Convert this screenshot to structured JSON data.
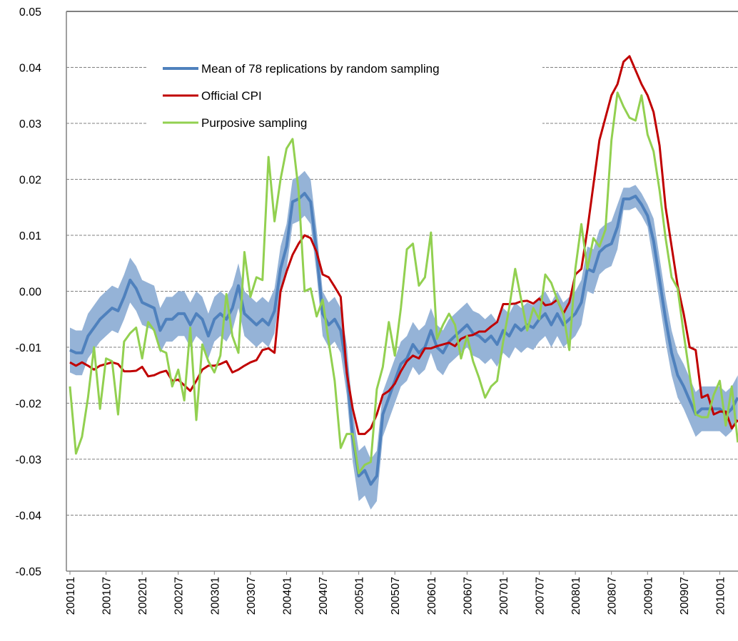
{
  "chart_data": {
    "type": "line",
    "categories": [
      "200101",
      null,
      null,
      null,
      null,
      null,
      "200107",
      null,
      null,
      null,
      null,
      null,
      "200201",
      null,
      null,
      null,
      null,
      null,
      "200207",
      null,
      null,
      null,
      null,
      null,
      "200301",
      null,
      null,
      null,
      null,
      null,
      "200307",
      null,
      null,
      null,
      null,
      null,
      "200401",
      null,
      null,
      null,
      null,
      null,
      "200407",
      null,
      null,
      null,
      null,
      null,
      "200501",
      null,
      null,
      null,
      null,
      null,
      "200507",
      null,
      null,
      null,
      null,
      null,
      "200601",
      null,
      null,
      null,
      null,
      null,
      "200607",
      null,
      null,
      null,
      null,
      null,
      "200701",
      null,
      null,
      null,
      null,
      null,
      "200707",
      null,
      null,
      null,
      null,
      null,
      "200801",
      null,
      null,
      null,
      null,
      null,
      "200807",
      null,
      null,
      null,
      null,
      null,
      "200901",
      null,
      null,
      null,
      null,
      null,
      "200907",
      null,
      null,
      null,
      null,
      null,
      "201001",
      null,
      null,
      null
    ],
    "band": {
      "color": "#95b3d7",
      "upper": [
        -0.0065,
        -0.007,
        -0.007,
        -0.004,
        -0.0025,
        -0.001,
        0.0,
        0.001,
        0.0005,
        0.003,
        0.006,
        0.0045,
        0.002,
        0.0015,
        0.001,
        -0.003,
        -0.001,
        -0.001,
        0.0,
        0.0,
        -0.002,
        0.0,
        -0.001,
        -0.004,
        -0.001,
        0.0,
        -0.001,
        0.001,
        0.005,
        0.0,
        -0.001,
        -0.002,
        -0.001,
        -0.002,
        0.0005,
        0.008,
        0.012,
        0.02,
        0.0205,
        0.0215,
        0.02,
        0.011,
        0.0,
        -0.002,
        -0.001,
        -0.003,
        -0.0095,
        -0.0215,
        -0.0285,
        -0.0275,
        -0.03,
        -0.0285,
        -0.018,
        -0.015,
        -0.012,
        -0.009,
        -0.008,
        -0.0055,
        -0.007,
        -0.006,
        -0.003,
        -0.006,
        -0.007,
        -0.005,
        -0.004,
        -0.003,
        -0.002,
        -0.0035,
        -0.004,
        -0.005,
        -0.004,
        -0.0055,
        -0.003,
        -0.004,
        -0.002,
        -0.003,
        -0.002,
        -0.0025,
        -0.001,
        0.0,
        -0.002,
        0.0,
        -0.002,
        -0.001,
        0.0,
        0.002,
        0.008,
        0.0075,
        0.011,
        0.012,
        0.0125,
        0.0155,
        0.0185,
        0.0185,
        0.019,
        0.0175,
        0.0155,
        0.013,
        0.006,
        -0.001,
        -0.007,
        -0.011,
        -0.013,
        -0.0155,
        -0.018,
        -0.017,
        -0.017,
        -0.017,
        -0.017,
        -0.018,
        -0.017,
        -0.015
      ],
      "lower": [
        -0.0145,
        -0.015,
        -0.015,
        -0.012,
        -0.0105,
        -0.009,
        -0.008,
        -0.007,
        -0.0075,
        -0.005,
        -0.002,
        -0.0035,
        -0.006,
        -0.0065,
        -0.007,
        -0.011,
        -0.009,
        -0.009,
        -0.008,
        -0.008,
        -0.01,
        -0.008,
        -0.009,
        -0.012,
        -0.009,
        -0.008,
        -0.009,
        -0.007,
        -0.003,
        -0.008,
        -0.009,
        -0.01,
        -0.009,
        -0.01,
        -0.0075,
        0.0,
        0.004,
        0.012,
        0.0125,
        0.0135,
        0.012,
        0.003,
        -0.008,
        -0.01,
        -0.009,
        -0.011,
        -0.0185,
        -0.0305,
        -0.0375,
        -0.0365,
        -0.039,
        -0.0375,
        -0.026,
        -0.023,
        -0.02,
        -0.017,
        -0.016,
        -0.0135,
        -0.015,
        -0.014,
        -0.011,
        -0.014,
        -0.015,
        -0.013,
        -0.012,
        -0.011,
        -0.01,
        -0.0115,
        -0.012,
        -0.013,
        -0.012,
        -0.0135,
        -0.011,
        -0.012,
        -0.01,
        -0.011,
        -0.01,
        -0.0105,
        -0.009,
        -0.008,
        -0.01,
        -0.008,
        -0.01,
        -0.009,
        -0.008,
        -0.006,
        0.0,
        -0.0005,
        0.003,
        0.004,
        0.0045,
        0.0075,
        0.0145,
        0.0145,
        0.015,
        0.0135,
        0.0115,
        0.005,
        -0.002,
        -0.009,
        -0.015,
        -0.019,
        -0.021,
        -0.0235,
        -0.026,
        -0.025,
        -0.025,
        -0.025,
        -0.025,
        -0.026,
        -0.025,
        -0.023
      ]
    },
    "series": [
      {
        "name": "Mean of 78 replications by random sampling",
        "color": "#4f81bd",
        "width": 4,
        "values": [
          -0.0105,
          -0.011,
          -0.011,
          -0.008,
          -0.0065,
          -0.005,
          -0.004,
          -0.003,
          -0.0035,
          -0.001,
          0.002,
          0.0005,
          -0.002,
          -0.0025,
          -0.003,
          -0.007,
          -0.005,
          -0.005,
          -0.004,
          -0.004,
          -0.006,
          -0.004,
          -0.005,
          -0.008,
          -0.005,
          -0.004,
          -0.005,
          -0.003,
          0.001,
          -0.004,
          -0.005,
          -0.006,
          -0.005,
          -0.006,
          -0.0035,
          0.004,
          0.008,
          0.016,
          0.0165,
          0.0175,
          0.016,
          0.007,
          -0.004,
          -0.006,
          -0.005,
          -0.007,
          -0.014,
          -0.026,
          -0.033,
          -0.032,
          -0.0345,
          -0.033,
          -0.022,
          -0.019,
          -0.016,
          -0.013,
          -0.012,
          -0.0095,
          -0.011,
          -0.01,
          -0.007,
          -0.01,
          -0.011,
          -0.009,
          -0.008,
          -0.007,
          -0.006,
          -0.0075,
          -0.008,
          -0.009,
          -0.008,
          -0.0095,
          -0.007,
          -0.008,
          -0.006,
          -0.007,
          -0.006,
          -0.0065,
          -0.005,
          -0.004,
          -0.006,
          -0.004,
          -0.006,
          -0.005,
          -0.004,
          -0.002,
          0.004,
          0.0035,
          0.007,
          0.008,
          0.0085,
          0.0115,
          0.0165,
          0.0165,
          0.017,
          0.0155,
          0.0135,
          0.009,
          0.002,
          -0.005,
          -0.011,
          -0.015,
          -0.017,
          -0.0195,
          -0.022,
          -0.021,
          -0.021,
          -0.021,
          -0.021,
          -0.022,
          -0.021,
          -0.019
        ]
      },
      {
        "name": "Official CPI",
        "color": "#c00000",
        "width": 3,
        "values": [
          -0.0127,
          -0.0133,
          -0.0127,
          -0.0133,
          -0.014,
          -0.0133,
          -0.013,
          -0.0127,
          -0.013,
          -0.0143,
          -0.0143,
          -0.0142,
          -0.0135,
          -0.0152,
          -0.015,
          -0.0145,
          -0.0142,
          -0.016,
          -0.0158,
          -0.0168,
          -0.0178,
          -0.016,
          -0.014,
          -0.0133,
          -0.0133,
          -0.013,
          -0.0125,
          -0.0145,
          -0.014,
          -0.0133,
          -0.0127,
          -0.0123,
          -0.0105,
          -0.0102,
          -0.011,
          0.0,
          0.0035,
          0.0065,
          0.0085,
          0.01,
          0.0095,
          0.007,
          0.003,
          0.0025,
          0.0008,
          -0.001,
          -0.0145,
          -0.021,
          -0.0255,
          -0.0255,
          -0.0245,
          -0.022,
          -0.0185,
          -0.0178,
          -0.0165,
          -0.0143,
          -0.0125,
          -0.0115,
          -0.012,
          -0.0102,
          -0.0102,
          -0.0098,
          -0.0095,
          -0.0092,
          -0.0098,
          -0.0085,
          -0.008,
          -0.0078,
          -0.0072,
          -0.0072,
          -0.0063,
          -0.0055,
          -0.0023,
          -0.0023,
          -0.0022,
          -0.0018,
          -0.0017,
          -0.0022,
          -0.0013,
          -0.0025,
          -0.0023,
          -0.0015,
          -0.004,
          -0.002,
          0.003,
          0.004,
          0.011,
          0.019,
          0.027,
          0.031,
          0.035,
          0.037,
          0.041,
          0.042,
          0.0395,
          0.037,
          0.035,
          0.032,
          0.026,
          0.015,
          0.008,
          0.001,
          -0.004,
          -0.01,
          -0.0105,
          -0.019,
          -0.0185,
          -0.022,
          -0.0215,
          -0.0215,
          -0.0245,
          -0.023
        ]
      },
      {
        "name": "Purposive sampling",
        "color": "#92d050",
        "width": 3,
        "values": [
          -0.017,
          -0.029,
          -0.026,
          -0.019,
          -0.01,
          -0.021,
          -0.012,
          -0.0125,
          -0.022,
          -0.009,
          -0.0075,
          -0.0065,
          -0.012,
          -0.0055,
          -0.007,
          -0.0105,
          -0.011,
          -0.017,
          -0.014,
          -0.0195,
          -0.0065,
          -0.023,
          -0.0095,
          -0.0125,
          -0.0145,
          -0.0115,
          -0.0005,
          -0.008,
          -0.011,
          0.007,
          -0.001,
          0.0025,
          0.002,
          0.024,
          0.0125,
          0.02,
          0.0255,
          0.0272,
          0.018,
          0.0,
          0.0005,
          -0.0045,
          -0.0015,
          -0.009,
          -0.016,
          -0.028,
          -0.0255,
          -0.0255,
          -0.0325,
          -0.031,
          -0.0305,
          -0.0175,
          -0.0135,
          -0.0055,
          -0.0115,
          -0.003,
          0.0075,
          0.0085,
          0.001,
          0.0025,
          0.0105,
          -0.0085,
          -0.006,
          -0.004,
          -0.006,
          -0.012,
          -0.008,
          -0.0125,
          -0.0155,
          -0.019,
          -0.017,
          -0.016,
          -0.009,
          -0.003,
          0.004,
          -0.0015,
          -0.007,
          -0.003,
          -0.005,
          0.003,
          0.0015,
          -0.0015,
          -0.004,
          -0.0105,
          0.004,
          0.012,
          0.004,
          0.0095,
          0.008,
          0.011,
          0.027,
          0.0355,
          0.033,
          0.031,
          0.0305,
          0.035,
          0.028,
          0.025,
          0.018,
          0.0095,
          0.0025,
          0.0005,
          -0.0075,
          -0.015,
          -0.022,
          -0.0225,
          -0.0225,
          -0.0185,
          -0.016,
          -0.024,
          -0.017,
          -0.027
        ]
      }
    ],
    "ylim": [
      -0.05,
      0.05
    ],
    "yticks": [
      -0.05,
      -0.04,
      -0.03,
      -0.02,
      -0.01,
      {
        "value": 0,
        "label": "0.00"
      },
      0.01,
      0.02,
      0.03,
      0.04,
      0.05
    ],
    "grid": true
  }
}
